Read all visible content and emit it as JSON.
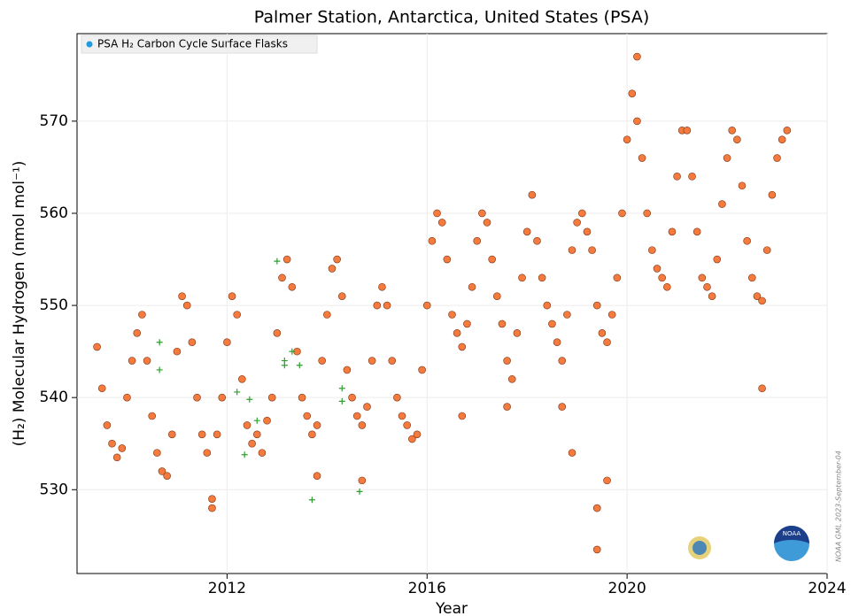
{
  "chart_data": {
    "type": "scatter",
    "title": "Palmer Station, Antarctica, United States (PSA)",
    "x_label": "Year",
    "y_label": "(H₂) Molecular Hydrogen (nmol mol⁻¹)",
    "annotation": "NOAA GML 2023-September-04",
    "xlim": [
      2009,
      2024
    ],
    "xticks": [
      2012,
      2016,
      2020,
      2024
    ],
    "ylim": [
      520.9,
      579.5
    ],
    "yticks": [
      530,
      540,
      550,
      560,
      570
    ],
    "grid": true,
    "legend": "upper left",
    "series": [
      {
        "name": "PSA H₂ Carbon Cycle Surface Flasks",
        "color": "#f47a3d",
        "marker": "o",
        "x": [
          2009.4,
          2009.5,
          2009.6,
          2009.7,
          2009.8,
          2009.9,
          2010.0,
          2010.1,
          2010.2,
          2010.3,
          2010.4,
          2010.5,
          2010.6,
          2010.7,
          2010.8,
          2010.9,
          2011.0,
          2011.1,
          2011.2,
          2011.3,
          2011.4,
          2011.5,
          2011.6,
          2011.7,
          2011.8,
          2011.9,
          2012.0,
          2012.1,
          2012.2,
          2012.3,
          2012.4,
          2012.5,
          2012.6,
          2012.7,
          2012.8,
          2012.9,
          2013.0,
          2013.1,
          2013.2,
          2013.3,
          2013.4,
          2013.5,
          2013.6,
          2013.7,
          2013.8,
          2013.9,
          2014.0,
          2014.1,
          2014.2,
          2014.3,
          2014.4,
          2014.5,
          2014.6,
          2014.7,
          2014.8,
          2014.9,
          2015.0,
          2015.1,
          2015.2,
          2015.3,
          2015.4,
          2015.5,
          2015.6,
          2015.7,
          2015.8,
          2015.9,
          2016.0,
          2016.1,
          2016.2,
          2016.3,
          2016.4,
          2016.5,
          2016.6,
          2016.7,
          2016.8,
          2016.9,
          2017.0,
          2017.1,
          2017.2,
          2017.3,
          2017.4,
          2017.5,
          2017.6,
          2017.7,
          2017.8,
          2017.9,
          2018.0,
          2018.1,
          2018.2,
          2018.3,
          2018.4,
          2018.5,
          2018.6,
          2018.7,
          2018.8,
          2018.9,
          2019.0,
          2019.1,
          2019.2,
          2019.3,
          2019.4,
          2019.5,
          2019.6,
          2019.7,
          2019.8,
          2019.9,
          2020.0,
          2020.1,
          2020.2,
          2020.3,
          2020.4,
          2020.5,
          2020.6,
          2020.7,
          2020.8,
          2020.9,
          2021.0,
          2021.1,
          2021.2,
          2021.3,
          2021.4,
          2021.5,
          2021.6,
          2021.7,
          2021.8,
          2021.9,
          2022.0,
          2022.1,
          2022.2,
          2022.3,
          2022.4,
          2022.5,
          2022.6,
          2022.7,
          2022.8,
          2022.9,
          2023.0,
          2023.1,
          2023.2,
          2011.7,
          2013.8,
          2014.7,
          2016.7,
          2017.6,
          2018.7,
          2018.9,
          2019.4,
          2019.4,
          2019.6,
          2020.2,
          2022.7
        ],
        "values": [
          545.5,
          541,
          537,
          535,
          533.5,
          534.5,
          540,
          544,
          547,
          549,
          544,
          538,
          534,
          532,
          531.5,
          536,
          545,
          551,
          550,
          546,
          540,
          536,
          534,
          529,
          536,
          540,
          546,
          551,
          549,
          542,
          537,
          535,
          536,
          534,
          537.5,
          540,
          547,
          553,
          555,
          552,
          545,
          540,
          538,
          536,
          537,
          544,
          549,
          554,
          555,
          551,
          543,
          540,
          538,
          537,
          539,
          544,
          550,
          552,
          550,
          544,
          540,
          538,
          537,
          535.5,
          536,
          543,
          550,
          557,
          560,
          559,
          555,
          549,
          547,
          545.5,
          548,
          552,
          557,
          560,
          559,
          555,
          551,
          548,
          544,
          542,
          547,
          553,
          558,
          562,
          557,
          553,
          550,
          548,
          546,
          544,
          549,
          556,
          559,
          560,
          558,
          556,
          550,
          547,
          546,
          549,
          553,
          560,
          568,
          573,
          570,
          566,
          560,
          556,
          554,
          553,
          552,
          558,
          564,
          569,
          569,
          564,
          558,
          553,
          552,
          551,
          555,
          561,
          566,
          569,
          568,
          563,
          557,
          553,
          551,
          550.5,
          556,
          562,
          566,
          568,
          569,
          528,
          531.5,
          531,
          538,
          539,
          539,
          534,
          528,
          523.5,
          531,
          577,
          541
        ]
      },
      {
        "color": "#2ca02c",
        "marker": "+",
        "x": [
          2010.65,
          2010.65,
          2012.2,
          2012.35,
          2012.45,
          2012.6,
          2013.0,
          2013.15,
          2013.15,
          2013.3,
          2013.45,
          2013.7,
          2014.3,
          2014.3,
          2014.65
        ],
        "values": [
          546,
          543,
          540.6,
          533.8,
          539.8,
          537.5,
          554.8,
          544,
          543.5,
          545,
          543.5,
          528.9,
          541,
          539.6,
          529.8
        ]
      }
    ]
  }
}
